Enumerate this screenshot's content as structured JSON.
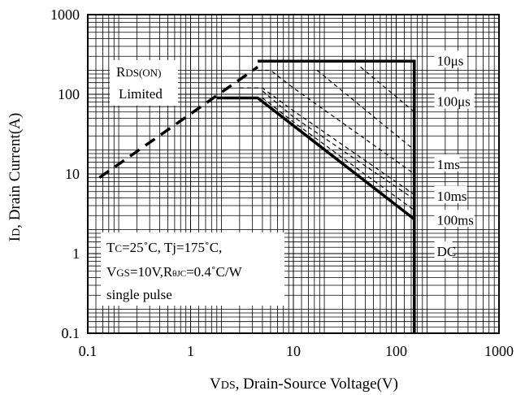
{
  "chart_data": {
    "type": "line",
    "x_scale": "log",
    "y_scale": "log",
    "xlim": [
      0.1,
      1000
    ],
    "ylim": [
      0.1,
      1000
    ],
    "grid": true,
    "x_ticks": [
      "0.1",
      "1",
      "10",
      "100",
      "1000"
    ],
    "y_ticks": [
      "0.1",
      "1",
      "10",
      "100",
      "1000"
    ],
    "xlabel": {
      "main": "V",
      "sub": "DS",
      "rest": ", Drain-Source Voltage(V)"
    },
    "ylabel": {
      "main": "I",
      "sub": "D",
      "rest": ", Drain Current(A)"
    },
    "rds_label": {
      "line1_main": "R",
      "line1_sub": "DS(ON)",
      "line2": "Limited"
    },
    "conditions": {
      "line1_a": "T",
      "line1_a_sub": "C",
      "line1_b": "=25˚C, Tj=175˚C,",
      "line2_a": "V",
      "line2_a_sub": "GS",
      "line2_b": "=10V,R",
      "line2_theta_sub": "θJC",
      "line2_c": "=0.4˚C/W",
      "line3": "single pulse"
    },
    "series": [
      {
        "name": "10μs",
        "style": "solid-thick",
        "points": [
          [
            4.5,
            260
          ],
          [
            150,
            260
          ],
          [
            150,
            0.1
          ]
        ]
      },
      {
        "name": "100μs",
        "style": "dashed-thin",
        "points": [
          [
            4.5,
            200
          ],
          [
            6,
            200
          ],
          [
            10,
            120
          ],
          [
            150,
            10
          ]
        ]
      },
      {
        "name": "1ms",
        "style": "dashed-thin",
        "points": [
          [
            3,
            120
          ],
          [
            5,
            120
          ],
          [
            10,
            62
          ],
          [
            150,
            5.5
          ]
        ]
      },
      {
        "name": "10ms",
        "style": "dashed-thin",
        "points": [
          [
            5,
            110
          ],
          [
            10,
            52
          ],
          [
            150,
            4.8
          ]
        ]
      },
      {
        "name": "100ms",
        "style": "dashed-thin",
        "points": [
          [
            5,
            90
          ],
          [
            10,
            45
          ],
          [
            150,
            3.5
          ]
        ]
      },
      {
        "name": "DC",
        "style": "solid-thick",
        "points": [
          [
            1.8,
            90
          ],
          [
            4.5,
            90
          ],
          [
            150,
            2.7
          ]
        ]
      },
      {
        "name": "RDS(ON) Limited",
        "style": "dashed-thick",
        "points": [
          [
            0.13,
            9
          ],
          [
            4.5,
            220
          ]
        ]
      },
      {
        "name": "",
        "style": "dashed-thin",
        "points": [
          [
            17,
            200
          ],
          [
            150,
            20
          ]
        ]
      },
      {
        "name": "",
        "style": "dashed-thin",
        "points": [
          [
            45,
            220
          ],
          [
            150,
            60
          ]
        ]
      }
    ],
    "curve_labels": [
      {
        "text": "10μs",
        "x": 200,
        "y": 260
      },
      {
        "text": "100μs",
        "x": 200,
        "y": 80
      },
      {
        "text": "1ms",
        "x": 200,
        "y": 13
      },
      {
        "text": "10ms",
        "x": 200,
        "y": 5.2
      },
      {
        "text": "100ms",
        "x": 200,
        "y": 2.6
      },
      {
        "text": "DC",
        "x": 200,
        "y": 1.05
      }
    ]
  }
}
